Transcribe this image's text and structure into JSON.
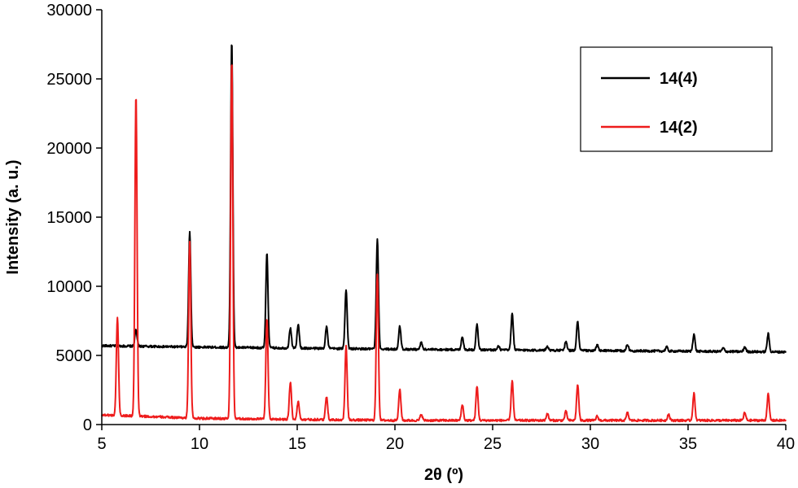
{
  "chart_data": {
    "type": "line",
    "xlabel": "2θ (º)",
    "ylabel": "Intensity (a. u.)",
    "xlim": [
      5,
      40
    ],
    "ylim": [
      0,
      30000
    ],
    "xticks": [
      5,
      10,
      15,
      20,
      25,
      30,
      35,
      40
    ],
    "yticks": [
      0,
      5000,
      10000,
      15000,
      20000,
      25000,
      30000
    ],
    "grid": false,
    "legend_position": "top-right",
    "series": [
      {
        "name": "14(4)",
        "color": "#000000",
        "baseline": [
          [
            5.0,
            5700
          ],
          [
            10.0,
            5600
          ],
          [
            20.0,
            5450
          ],
          [
            30.0,
            5350
          ],
          [
            40.0,
            5250
          ]
        ],
        "peaks": [
          [
            6.75,
            1200
          ],
          [
            9.5,
            8300
          ],
          [
            11.65,
            22200
          ],
          [
            13.45,
            6800
          ],
          [
            14.65,
            1450
          ],
          [
            15.05,
            1700
          ],
          [
            16.5,
            1600
          ],
          [
            17.5,
            4300
          ],
          [
            19.1,
            7900
          ],
          [
            20.25,
            1650
          ],
          [
            21.35,
            500
          ],
          [
            23.45,
            950
          ],
          [
            24.2,
            1850
          ],
          [
            25.3,
            250
          ],
          [
            26.0,
            2650
          ],
          [
            27.8,
            300
          ],
          [
            28.75,
            650
          ],
          [
            29.35,
            2100
          ],
          [
            30.35,
            400
          ],
          [
            31.9,
            450
          ],
          [
            33.9,
            300
          ],
          [
            35.3,
            1250
          ],
          [
            36.8,
            250
          ],
          [
            37.9,
            350
          ],
          [
            39.1,
            1300
          ]
        ]
      },
      {
        "name": "14(2)",
        "color": "#ee1c1c",
        "baseline": [
          [
            5.0,
            700
          ],
          [
            10.0,
            450
          ],
          [
            20.0,
            300
          ],
          [
            30.0,
            300
          ],
          [
            40.0,
            300
          ]
        ],
        "peaks": [
          [
            5.8,
            7100
          ],
          [
            6.75,
            23200
          ],
          [
            9.5,
            12800
          ],
          [
            11.65,
            26000
          ],
          [
            13.45,
            7300
          ],
          [
            14.65,
            2700
          ],
          [
            15.05,
            1300
          ],
          [
            16.5,
            1650
          ],
          [
            17.5,
            5300
          ],
          [
            19.1,
            10600
          ],
          [
            20.25,
            2250
          ],
          [
            21.35,
            450
          ],
          [
            23.45,
            1150
          ],
          [
            24.2,
            2450
          ],
          [
            26.0,
            2900
          ],
          [
            27.8,
            500
          ],
          [
            28.75,
            650
          ],
          [
            29.35,
            2600
          ],
          [
            30.35,
            300
          ],
          [
            31.9,
            550
          ],
          [
            34.0,
            450
          ],
          [
            35.3,
            1950
          ],
          [
            37.9,
            550
          ],
          [
            39.1,
            1900
          ]
        ]
      }
    ]
  }
}
